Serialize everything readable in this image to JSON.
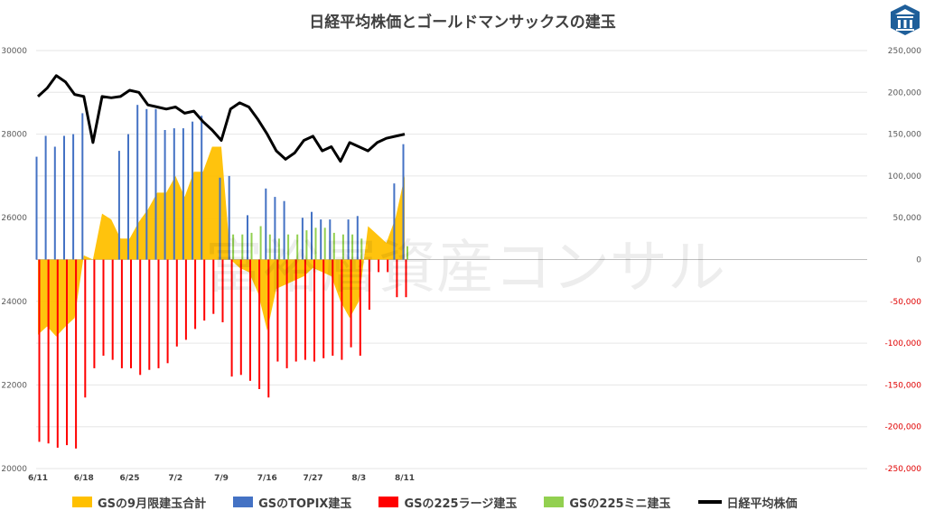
{
  "chart_data": {
    "type": "bar+line",
    "title": "日経平均株価とゴールドマンサックスの建玉",
    "watermark": "富裕層資産コンサル",
    "left_axis": {
      "ylim": [
        20000,
        30000
      ],
      "ticks": [
        "30000",
        "28000",
        "26000",
        "24000",
        "22000",
        "20000"
      ],
      "tick_values": [
        30000,
        28000,
        26000,
        24000,
        22000,
        20000
      ]
    },
    "right_axis": {
      "ylim": [
        -250000,
        250000
      ],
      "ticks": [
        "250,000",
        "200,000",
        "150,000",
        "100,000",
        "50,000",
        "0",
        "-50,000",
        "-100,000",
        "-150,000",
        "-200,000",
        "-250,000"
      ],
      "tick_values": [
        250000,
        200000,
        150000,
        100000,
        50000,
        0,
        -50000,
        -100000,
        -150000,
        -200000,
        -250000
      ]
    },
    "x_ticks": [
      {
        "label": "6/11",
        "index": 0
      },
      {
        "label": "6/18",
        "index": 5
      },
      {
        "label": "6/25",
        "index": 10
      },
      {
        "label": "7/2",
        "index": 15
      },
      {
        "label": "7/9",
        "index": 20
      },
      {
        "label": "7/16",
        "index": 25
      },
      {
        "label": "7/27",
        "index": 30
      },
      {
        "label": "8/3",
        "index": 35
      },
      {
        "label": "8/11",
        "index": 40
      }
    ],
    "n_points": 41,
    "series": [
      {
        "name": "GSの9月限建玉合計",
        "kind": "area",
        "color": "#ffc000",
        "values": [
          -90000,
          -80000,
          -92000,
          -80000,
          -70000,
          5000,
          0,
          55000,
          48000,
          25000,
          25000,
          45000,
          60000,
          80000,
          80000,
          100000,
          75000,
          105000,
          105000,
          135000,
          135000,
          0,
          -10000,
          -15000,
          -40000,
          -85000,
          -35000,
          -30000,
          -25000,
          -20000,
          -10000,
          -15000,
          -20000,
          -50000,
          -70000,
          -50000,
          40000,
          30000,
          20000,
          50000,
          100000
        ]
      },
      {
        "name": "GSのTOPIX建玉",
        "kind": "bar",
        "color": "#4472c4",
        "values": [
          123000,
          148000,
          135000,
          148000,
          150000,
          175000,
          0,
          0,
          0,
          130000,
          150000,
          185000,
          180000,
          180000,
          155000,
          157000,
          157000,
          165000,
          172000,
          0,
          98000,
          100000,
          0,
          53000,
          0,
          85000,
          75000,
          70000,
          0,
          50000,
          57000,
          48000,
          48000,
          0,
          48000,
          52000,
          0,
          0,
          0,
          91000,
          138000
        ]
      },
      {
        "name": "GSの225ラージ建玉",
        "kind": "bar",
        "color": "#ff0000",
        "values": [
          -218000,
          -220000,
          -225000,
          -222000,
          -226000,
          -165000,
          -130000,
          -115000,
          -120000,
          -130000,
          -130000,
          -138000,
          -132000,
          -130000,
          -124000,
          -104000,
          -96000,
          -83000,
          -73000,
          -65000,
          -75000,
          -140000,
          -138000,
          -145000,
          -155000,
          -165000,
          -122000,
          -130000,
          -122000,
          -120000,
          -122000,
          -118000,
          -115000,
          -120000,
          -105000,
          -115000,
          -60000,
          -15000,
          -15000,
          -45000,
          -45000
        ]
      },
      {
        "name": "GSの225ミニ建玉",
        "kind": "bar",
        "color": "#92d050",
        "values": [
          0,
          0,
          0,
          0,
          0,
          0,
          0,
          0,
          0,
          0,
          0,
          0,
          0,
          0,
          0,
          0,
          0,
          0,
          0,
          0,
          0,
          30000,
          30000,
          32000,
          40000,
          30000,
          25000,
          30000,
          30000,
          35000,
          38000,
          38000,
          32000,
          30000,
          30000,
          25000,
          0,
          0,
          0,
          0,
          16000
        ]
      },
      {
        "name": "日経平均株価",
        "kind": "line",
        "color": "#000000",
        "axis": "left",
        "values": [
          28900,
          29100,
          29400,
          29250,
          28950,
          28900,
          27800,
          28900,
          28870,
          28900,
          29050,
          29000,
          28700,
          28650,
          28600,
          28650,
          28500,
          28550,
          28300,
          28100,
          27850,
          28600,
          28750,
          28650,
          28350,
          28000,
          27600,
          27400,
          27550,
          27850,
          27950,
          27600,
          27700,
          27350,
          27800,
          27700,
          27600,
          27800,
          27900,
          27950,
          28000
        ]
      }
    ]
  }
}
